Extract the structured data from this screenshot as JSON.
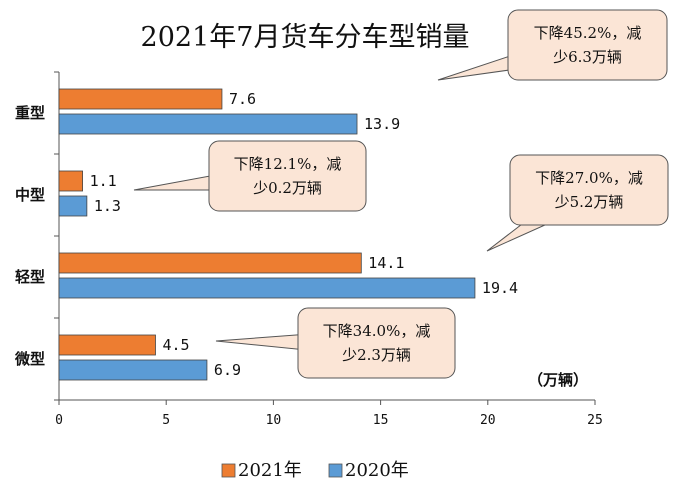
{
  "chart_data": {
    "type": "bar",
    "orientation": "horizontal",
    "title": "2021年7月货车分车型销量",
    "unit_label": "（万辆）",
    "categories": [
      "重型",
      "中型",
      "轻型",
      "微型"
    ],
    "series": [
      {
        "name": "2021年",
        "values": [
          7.6,
          1.1,
          14.1,
          4.5
        ]
      },
      {
        "name": "2020年",
        "values": [
          13.9,
          1.3,
          19.4,
          6.9
        ]
      }
    ],
    "data_labels": [
      [
        "7.6",
        "1.1",
        "14.1",
        "4.5"
      ],
      [
        "13.9",
        "1.3",
        "19.4",
        "6.9"
      ]
    ],
    "xlim": [
      0,
      25
    ],
    "xticks": [
      "0",
      "5",
      "10",
      "15",
      "20",
      "25"
    ],
    "grid": false,
    "legend_position": "bottom",
    "annotations": [
      {
        "category": "重型",
        "lines": [
          "下降45.2%，减",
          "少6.3万辆"
        ]
      },
      {
        "category": "中型",
        "lines": [
          "下降12.1%，减",
          "少0.2万辆"
        ]
      },
      {
        "category": "轻型",
        "lines": [
          "下降27.0%，减",
          "少5.2万辆"
        ]
      },
      {
        "category": "微型",
        "lines": [
          "下降34.0%，减",
          "少2.3万辆"
        ]
      }
    ]
  },
  "colors": {
    "series_2021": "#ED7D31",
    "series_2020": "#5B9BD5",
    "callout_fill": "#FBE5D6",
    "callout_stroke": "#555555"
  }
}
